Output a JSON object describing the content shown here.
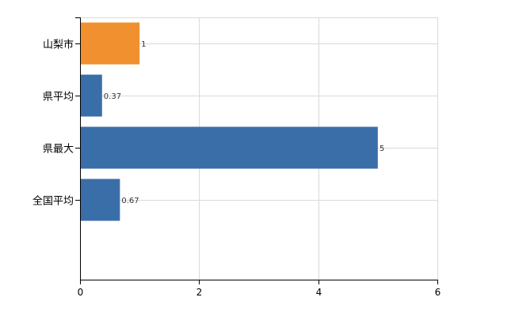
{
  "chart_data": {
    "type": "bar",
    "orientation": "horizontal",
    "categories": [
      "山梨市",
      "県平均",
      "県最大",
      "全国平均"
    ],
    "values": [
      1,
      0.37,
      5,
      0.67
    ],
    "data_labels": [
      "1",
      "0.37",
      "5",
      "0.67"
    ],
    "bar_colors": [
      "#f0902f",
      "#3a6ea8",
      "#3a6ea8",
      "#3a6ea8"
    ],
    "xlim": [
      0,
      6
    ],
    "xticks": [
      0,
      2,
      4,
      6
    ],
    "grid": true,
    "title": "",
    "xlabel": "",
    "ylabel": ""
  }
}
